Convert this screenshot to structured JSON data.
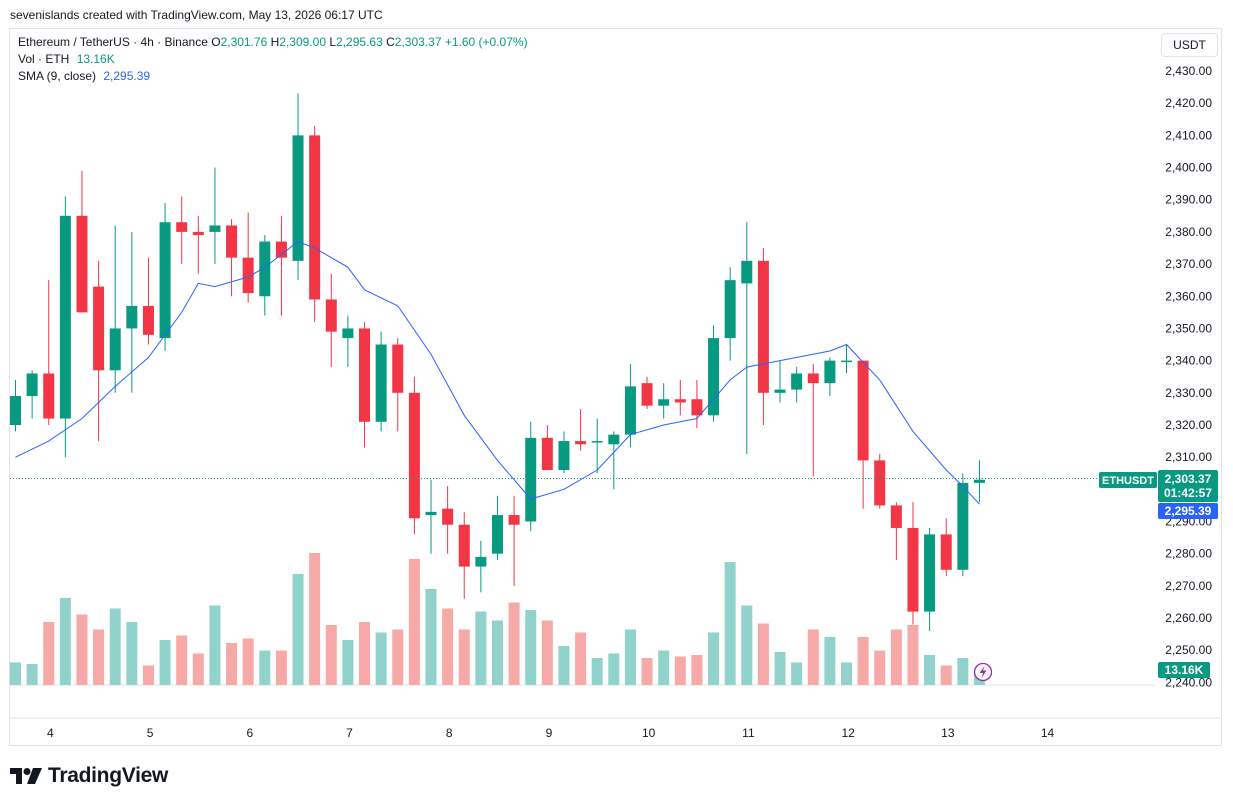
{
  "credit": "sevenislands created with TradingView.com, May 13, 2026 06:17 UTC",
  "legend": {
    "symbol": "Ethereum / TetherUS · 4h · Binance",
    "o_label": "O",
    "o": "2,301.76",
    "h_label": "H",
    "h": "2,309.00",
    "l_label": "L",
    "l": "2,295.63",
    "c_label": "C",
    "c": "2,303.37",
    "change": "+1.60 (+0.07%)",
    "vol_label": "Vol · ETH",
    "vol_value": "13.16K",
    "sma_label": "SMA (9, close)",
    "sma_value": "2,295.39"
  },
  "currency_button": "USDT",
  "brand": "TradingView",
  "colors": {
    "up": "#089981",
    "down": "#f23645",
    "up_volume": "#92d2cc",
    "down_volume": "#f7a9a7",
    "sma": "#2962ff"
  },
  "icons": {
    "flash": "lightning-icon",
    "logo": "tradingview-logo-icon"
  },
  "chart_data": {
    "type": "candlestick",
    "title": "Ethereum / TetherUS · 4h · Binance",
    "interval": "4h",
    "ylim": [
      2240,
      2440
    ],
    "y_ticks": [
      "2,430.00",
      "2,420.00",
      "2,410.00",
      "2,400.00",
      "2,390.00",
      "2,380.00",
      "2,370.00",
      "2,360.00",
      "2,350.00",
      "2,340.00",
      "2,330.00",
      "2,320.00",
      "2,310.00",
      "2,300.00",
      "2,290.00",
      "2,280.00",
      "2,270.00",
      "2,260.00",
      "2,250.00",
      "2,240.00"
    ],
    "x_ticks": [
      {
        "label": "4",
        "index": 3
      },
      {
        "label": "5",
        "index": 9
      },
      {
        "label": "6",
        "index": 15
      },
      {
        "label": "7",
        "index": 21
      },
      {
        "label": "8",
        "index": 27
      },
      {
        "label": "9",
        "index": 33
      },
      {
        "label": "10",
        "index": 39
      },
      {
        "label": "11",
        "index": 45
      },
      {
        "label": "12",
        "index": 51
      },
      {
        "label": "13",
        "index": 57
      },
      {
        "label": "14",
        "index": 63
      }
    ],
    "candles": [
      {
        "o": 2320,
        "h": 2334,
        "l": 2318,
        "c": 2329,
        "v": 7.5
      },
      {
        "o": 2329,
        "h": 2337,
        "l": 2322,
        "c": 2336,
        "v": 7
      },
      {
        "o": 2336,
        "h": 2365,
        "l": 2320,
        "c": 2322,
        "v": 21
      },
      {
        "o": 2322,
        "h": 2391,
        "l": 2310,
        "c": 2385,
        "v": 29
      },
      {
        "o": 2385,
        "h": 2399,
        "l": 2355,
        "c": 2355,
        "v": 23.5
      },
      {
        "o": 2363,
        "h": 2371,
        "l": 2315,
        "c": 2337,
        "v": 18.5
      },
      {
        "o": 2337,
        "h": 2382,
        "l": 2330,
        "c": 2350,
        "v": 25.5
      },
      {
        "o": 2350,
        "h": 2380,
        "l": 2330,
        "c": 2357,
        "v": 21
      },
      {
        "o": 2357,
        "h": 2372,
        "l": 2345,
        "c": 2348,
        "v": 6.5
      },
      {
        "o": 2347,
        "h": 2389,
        "l": 2343,
        "c": 2383,
        "v": 15
      },
      {
        "o": 2383,
        "h": 2391,
        "l": 2370,
        "c": 2380,
        "v": 16.5
      },
      {
        "o": 2380,
        "h": 2385,
        "l": 2367,
        "c": 2379,
        "v": 10.5
      },
      {
        "o": 2380,
        "h": 2400,
        "l": 2370,
        "c": 2382,
        "v": 26.5
      },
      {
        "o": 2382,
        "h": 2384,
        "l": 2360,
        "c": 2372,
        "v": 14
      },
      {
        "o": 2372,
        "h": 2386,
        "l": 2358,
        "c": 2361,
        "v": 15.5
      },
      {
        "o": 2360,
        "h": 2379,
        "l": 2354,
        "c": 2377,
        "v": 11.5
      },
      {
        "o": 2377,
        "h": 2385,
        "l": 2354,
        "c": 2372,
        "v": 11.5
      },
      {
        "o": 2371,
        "h": 2423,
        "l": 2365,
        "c": 2410,
        "v": 37
      },
      {
        "o": 2410,
        "h": 2413,
        "l": 2352,
        "c": 2359,
        "v": 44
      },
      {
        "o": 2359,
        "h": 2367,
        "l": 2338,
        "c": 2349,
        "v": 20
      },
      {
        "o": 2347,
        "h": 2354,
        "l": 2338,
        "c": 2350,
        "v": 15
      },
      {
        "o": 2350,
        "h": 2352,
        "l": 2313,
        "c": 2321,
        "v": 21
      },
      {
        "o": 2321,
        "h": 2349,
        "l": 2318,
        "c": 2345,
        "v": 17.5
      },
      {
        "o": 2345,
        "h": 2347,
        "l": 2318,
        "c": 2330,
        "v": 18.5
      },
      {
        "o": 2330,
        "h": 2335,
        "l": 2286,
        "c": 2291,
        "v": 42
      },
      {
        "o": 2292,
        "h": 2303,
        "l": 2280,
        "c": 2293,
        "v": 32
      },
      {
        "o": 2294,
        "h": 2301,
        "l": 2280,
        "c": 2289,
        "v": 25.5
      },
      {
        "o": 2289,
        "h": 2293,
        "l": 2266,
        "c": 2276,
        "v": 18.5
      },
      {
        "o": 2276,
        "h": 2284,
        "l": 2268,
        "c": 2279,
        "v": 24.5
      },
      {
        "o": 2280,
        "h": 2298,
        "l": 2278,
        "c": 2292,
        "v": 21.5
      },
      {
        "o": 2292,
        "h": 2298,
        "l": 2270,
        "c": 2289,
        "v": 27.5
      },
      {
        "o": 2290,
        "h": 2321,
        "l": 2287,
        "c": 2316,
        "v": 25
      },
      {
        "o": 2316,
        "h": 2320,
        "l": 2306,
        "c": 2306,
        "v": 21.5
      },
      {
        "o": 2306,
        "h": 2318,
        "l": 2305,
        "c": 2315,
        "v": 13
      },
      {
        "o": 2315,
        "h": 2325,
        "l": 2312,
        "c": 2314,
        "v": 17.5
      },
      {
        "o": 2315,
        "h": 2322,
        "l": 2305,
        "c": 2315,
        "v": 9
      },
      {
        "o": 2314,
        "h": 2318,
        "l": 2300,
        "c": 2317,
        "v": 10.5
      },
      {
        "o": 2317,
        "h": 2339,
        "l": 2313,
        "c": 2332,
        "v": 18.5
      },
      {
        "o": 2333,
        "h": 2335,
        "l": 2325,
        "c": 2326,
        "v": 9
      },
      {
        "o": 2326,
        "h": 2333,
        "l": 2322,
        "c": 2328,
        "v": 11.5
      },
      {
        "o": 2328,
        "h": 2334,
        "l": 2323,
        "c": 2327,
        "v": 9.5
      },
      {
        "o": 2328,
        "h": 2334,
        "l": 2319,
        "c": 2323,
        "v": 10
      },
      {
        "o": 2323,
        "h": 2351,
        "l": 2321,
        "c": 2347,
        "v": 17.5
      },
      {
        "o": 2347,
        "h": 2369,
        "l": 2340,
        "c": 2365,
        "v": 41
      },
      {
        "o": 2364,
        "h": 2383,
        "l": 2311,
        "c": 2371,
        "v": 26.5
      },
      {
        "o": 2371,
        "h": 2375,
        "l": 2320,
        "c": 2330,
        "v": 20.5
      },
      {
        "o": 2330,
        "h": 2340,
        "l": 2327,
        "c": 2331,
        "v": 11
      },
      {
        "o": 2331,
        "h": 2338,
        "l": 2327,
        "c": 2336,
        "v": 7.5
      },
      {
        "o": 2336,
        "h": 2339,
        "l": 2304,
        "c": 2333,
        "v": 18.5
      },
      {
        "o": 2333,
        "h": 2341,
        "l": 2329,
        "c": 2340,
        "v": 16
      },
      {
        "o": 2340,
        "h": 2345,
        "l": 2336,
        "c": 2340,
        "v": 7.5
      },
      {
        "o": 2340,
        "h": 2340,
        "l": 2294,
        "c": 2309,
        "v": 16
      },
      {
        "o": 2309,
        "h": 2311,
        "l": 2294,
        "c": 2295,
        "v": 11.5
      },
      {
        "o": 2295,
        "h": 2296,
        "l": 2278,
        "c": 2288,
        "v": 18.5
      },
      {
        "o": 2288,
        "h": 2296,
        "l": 2258,
        "c": 2262,
        "v": 20
      },
      {
        "o": 2262,
        "h": 2288,
        "l": 2256,
        "c": 2286,
        "v": 10
      },
      {
        "o": 2286,
        "h": 2291,
        "l": 2273,
        "c": 2275,
        "v": 6.5
      },
      {
        "o": 2275,
        "h": 2305,
        "l": 2273,
        "c": 2302,
        "v": 9
      },
      {
        "o": 2302,
        "h": 2309,
        "l": 2296,
        "c": 2303,
        "v": 5
      }
    ],
    "sma": [
      {
        "i": 0,
        "v": 2310
      },
      {
        "i": 2,
        "v": 2315
      },
      {
        "i": 4,
        "v": 2322
      },
      {
        "i": 6,
        "v": 2332
      },
      {
        "i": 8,
        "v": 2341
      },
      {
        "i": 10,
        "v": 2355
      },
      {
        "i": 11,
        "v": 2364
      },
      {
        "i": 12,
        "v": 2363
      },
      {
        "i": 14,
        "v": 2366
      },
      {
        "i": 15,
        "v": 2369
      },
      {
        "i": 17,
        "v": 2377
      },
      {
        "i": 18,
        "v": 2375
      },
      {
        "i": 20,
        "v": 2369
      },
      {
        "i": 21,
        "v": 2362
      },
      {
        "i": 23,
        "v": 2357
      },
      {
        "i": 25,
        "v": 2342
      },
      {
        "i": 27,
        "v": 2323
      },
      {
        "i": 29,
        "v": 2309
      },
      {
        "i": 31,
        "v": 2297
      },
      {
        "i": 33,
        "v": 2300
      },
      {
        "i": 35,
        "v": 2306
      },
      {
        "i": 37,
        "v": 2317
      },
      {
        "i": 39,
        "v": 2320
      },
      {
        "i": 41,
        "v": 2322
      },
      {
        "i": 43,
        "v": 2334
      },
      {
        "i": 44,
        "v": 2338
      },
      {
        "i": 46,
        "v": 2340
      },
      {
        "i": 49,
        "v": 2343
      },
      {
        "i": 50,
        "v": 2345
      },
      {
        "i": 52,
        "v": 2334
      },
      {
        "i": 54,
        "v": 2318
      },
      {
        "i": 56,
        "v": 2306
      },
      {
        "i": 57,
        "v": 2301
      },
      {
        "i": 58,
        "v": 2295.39
      }
    ],
    "volume_max": 50,
    "price_tag": {
      "symbol": "ETHUSDT",
      "price": "2,303.37",
      "countdown": "01:42:57",
      "value": 2303.37
    },
    "sma_tag": {
      "value": "2,295.39",
      "level": 2295.39
    },
    "volume_tag": "13.16K"
  }
}
